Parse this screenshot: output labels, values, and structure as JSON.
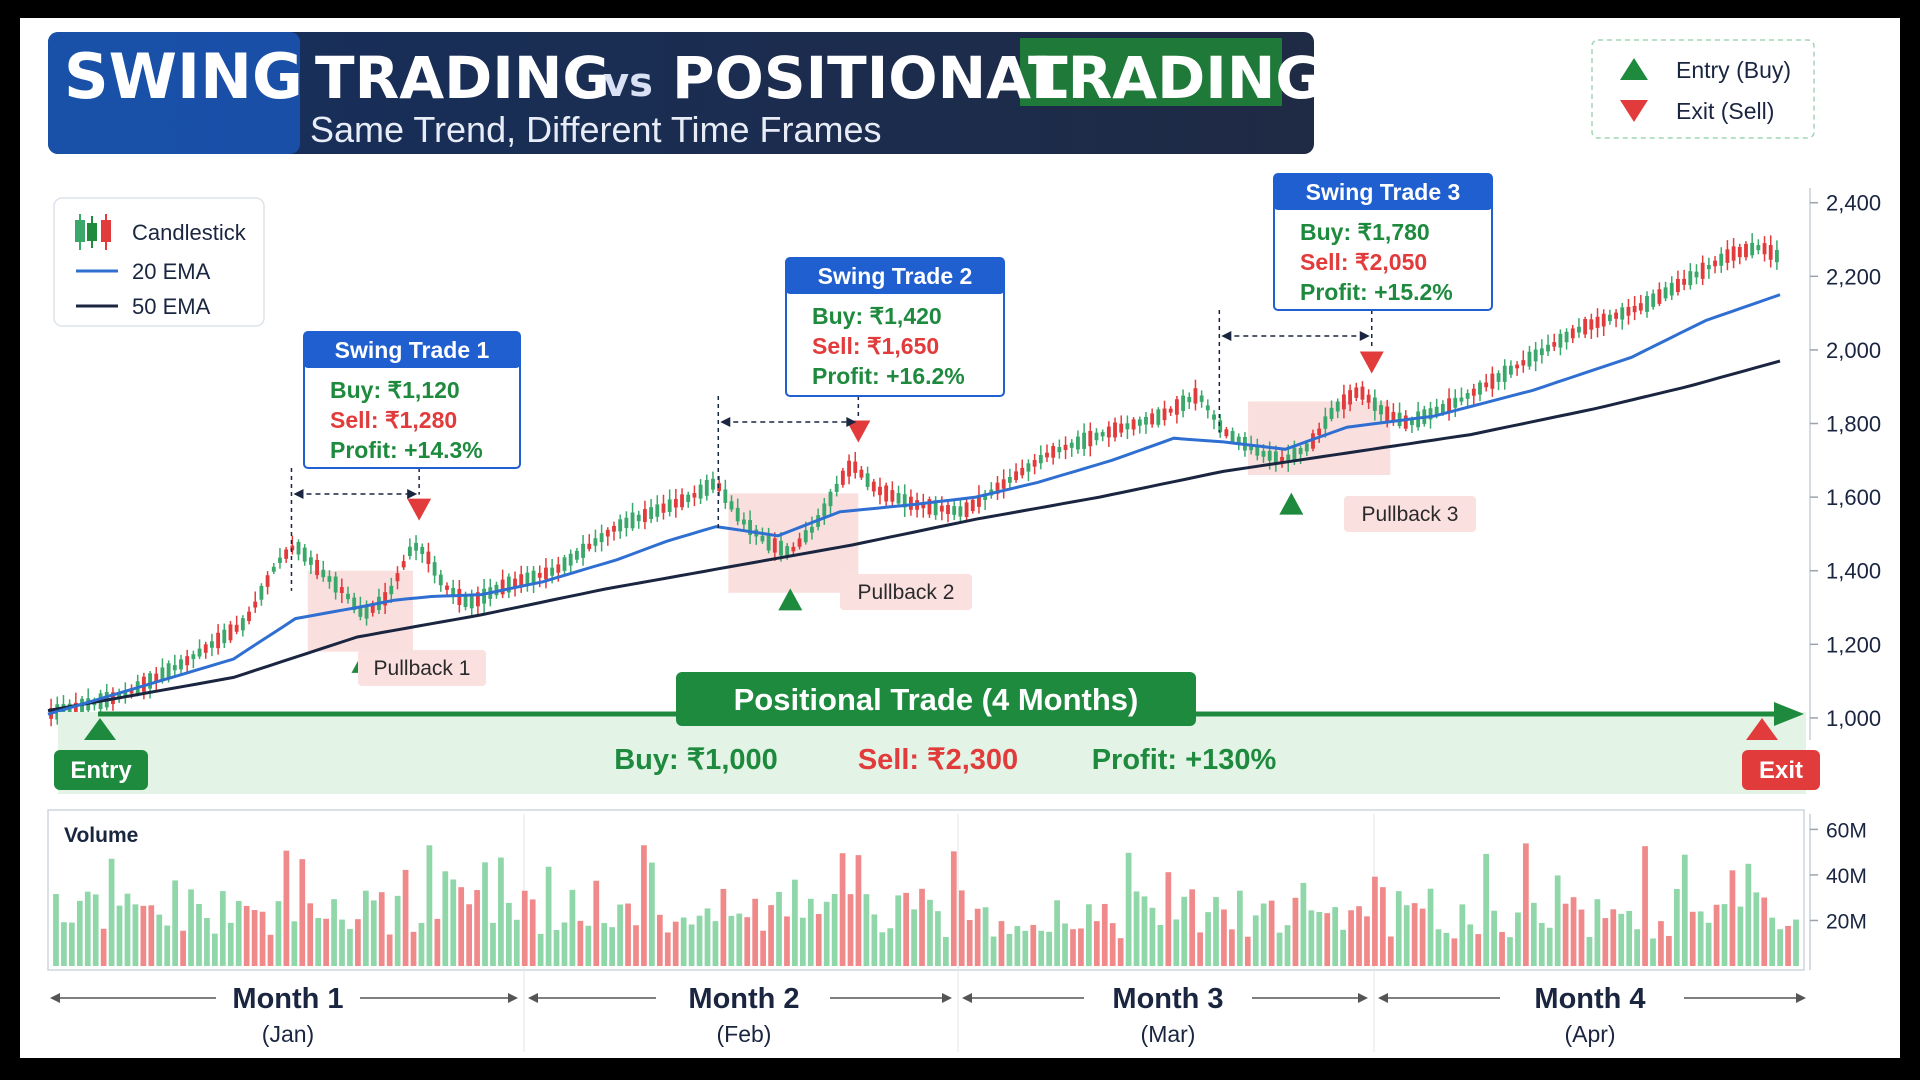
{
  "header": {
    "title_part1": "SWING",
    "title_part2": "TRADING",
    "title_vs": "vs",
    "title_part3": "POSITIONAL",
    "title_part4": "TRADING",
    "subtitle": "Same Trend, Different Time Frames"
  },
  "legend_signals": {
    "entry": "Entry (Buy)",
    "exit": "Exit (Sell)"
  },
  "legend_series": {
    "candles": "Candlestick",
    "ema20": "20 EMA",
    "ema50": "50 EMA"
  },
  "colors": {
    "up": "#3aa86b",
    "down": "#e23b3b",
    "ema20": "#2f6fd1",
    "ema50": "#1a2540",
    "green_band": "#1e8a3e",
    "header_bg": "#1a2a4a",
    "box_header": "#1f5fcf"
  },
  "swing_trades": [
    {
      "title": "Swing Trade 1",
      "buy": "Buy: ₹1,120",
      "sell": "Sell: ₹1,280",
      "profit": "Profit: +14.3%",
      "pullback": "Pullback 1"
    },
    {
      "title": "Swing Trade 2",
      "buy": "Buy: ₹1,420",
      "sell": "Sell: ₹1,650",
      "profit": "Profit: +16.2%",
      "pullback": "Pullback 2"
    },
    {
      "title": "Swing Trade 3",
      "buy": "Buy: ₹1,780",
      "sell": "Sell: ₹2,050",
      "profit": "Profit: +15.2%",
      "pullback": "Pullback 3"
    }
  ],
  "positional": {
    "title": "Positional Trade (4 Months)",
    "buy": "Buy: ₹1,000",
    "sell": "Sell: ₹2,300",
    "profit": "Profit: +130%",
    "entry_label": "Entry",
    "exit_label": "Exit"
  },
  "volume_label": "Volume",
  "months": [
    {
      "name": "Month 1",
      "sub": "(Jan)"
    },
    {
      "name": "Month 2",
      "sub": "(Feb)"
    },
    {
      "name": "Month 3",
      "sub": "(Mar)"
    },
    {
      "name": "Month 4",
      "sub": "(Apr)"
    }
  ],
  "chart_data": {
    "type": "line",
    "y_ticks": [
      "2,400",
      "2,200",
      "2,000",
      "1,800",
      "1,600",
      "1,400",
      "1,200",
      "1,000"
    ],
    "y_tick_values": [
      2400,
      2200,
      2000,
      1800,
      1600,
      1400,
      1200,
      1000
    ],
    "ylim": [
      940,
      2440
    ],
    "volume_ticks": [
      "60M",
      "40M",
      "20M"
    ],
    "volume_tick_values": [
      60,
      40,
      20
    ],
    "volume_ylim": [
      0,
      65
    ],
    "price_path": [
      [
        0,
        1010
      ],
      [
        12,
        1060
      ],
      [
        22,
        1150
      ],
      [
        32,
        1260
      ],
      [
        37,
        1420
      ],
      [
        40,
        1470
      ],
      [
        44,
        1400
      ],
      [
        48,
        1340
      ],
      [
        51,
        1280
      ],
      [
        55,
        1330
      ],
      [
        59,
        1470
      ],
      [
        61,
        1450
      ],
      [
        64,
        1360
      ],
      [
        68,
        1310
      ],
      [
        74,
        1360
      ],
      [
        82,
        1400
      ],
      [
        92,
        1520
      ],
      [
        104,
        1600
      ],
      [
        108,
        1640
      ],
      [
        112,
        1540
      ],
      [
        116,
        1480
      ],
      [
        120,
        1450
      ],
      [
        124,
        1520
      ],
      [
        128,
        1640
      ],
      [
        130,
        1690
      ],
      [
        134,
        1620
      ],
      [
        140,
        1580
      ],
      [
        148,
        1560
      ],
      [
        154,
        1630
      ],
      [
        162,
        1720
      ],
      [
        172,
        1780
      ],
      [
        180,
        1820
      ],
      [
        186,
        1880
      ],
      [
        190,
        1780
      ],
      [
        196,
        1720
      ],
      [
        200,
        1700
      ],
      [
        204,
        1740
      ],
      [
        208,
        1840
      ],
      [
        212,
        1890
      ],
      [
        216,
        1830
      ],
      [
        220,
        1800
      ],
      [
        228,
        1860
      ],
      [
        238,
        1960
      ],
      [
        248,
        2060
      ],
      [
        258,
        2120
      ],
      [
        266,
        2200
      ],
      [
        272,
        2260
      ],
      [
        277,
        2280
      ],
      [
        280,
        2250
      ]
    ],
    "ema20_path": [
      [
        0,
        1010
      ],
      [
        30,
        1160
      ],
      [
        40,
        1270
      ],
      [
        50,
        1300
      ],
      [
        56,
        1320
      ],
      [
        62,
        1330
      ],
      [
        70,
        1335
      ],
      [
        80,
        1370
      ],
      [
        92,
        1430
      ],
      [
        100,
        1480
      ],
      [
        108,
        1520
      ],
      [
        118,
        1495
      ],
      [
        128,
        1560
      ],
      [
        140,
        1580
      ],
      [
        150,
        1600
      ],
      [
        160,
        1640
      ],
      [
        172,
        1700
      ],
      [
        182,
        1760
      ],
      [
        190,
        1750
      ],
      [
        200,
        1730
      ],
      [
        210,
        1790
      ],
      [
        224,
        1820
      ],
      [
        240,
        1890
      ],
      [
        256,
        1980
      ],
      [
        268,
        2080
      ],
      [
        280,
        2150
      ]
    ],
    "ema50_path": [
      [
        0,
        1020
      ],
      [
        30,
        1110
      ],
      [
        50,
        1220
      ],
      [
        70,
        1280
      ],
      [
        90,
        1350
      ],
      [
        110,
        1410
      ],
      [
        130,
        1470
      ],
      [
        150,
        1540
      ],
      [
        170,
        1600
      ],
      [
        190,
        1670
      ],
      [
        210,
        1720
      ],
      [
        230,
        1770
      ],
      [
        250,
        1840
      ],
      [
        265,
        1900
      ],
      [
        280,
        1970
      ]
    ],
    "swing_entries": [
      {
        "x": 51,
        "y": 1120
      },
      {
        "x": 120,
        "y": 1420
      },
      {
        "x": 201,
        "y": 1780
      }
    ],
    "swing_exits": [
      {
        "x": 60,
        "y": 1280
      },
      {
        "x": 131,
        "y": 1650
      },
      {
        "x": 214,
        "y": 2050
      }
    ],
    "pullback_zones": [
      {
        "x0": 42,
        "x1": 59,
        "y0": 1180,
        "y1": 1400
      },
      {
        "x0": 110,
        "x1": 131,
        "y0": 1340,
        "y1": 1610
      },
      {
        "x0": 194,
        "x1": 217,
        "y0": 1660,
        "y1": 1860
      }
    ],
    "candle_count": 280,
    "volume_count": 220,
    "positional_entry": 1000,
    "positional_exit": 2300,
    "series": [
      {
        "name": "Candlestick"
      },
      {
        "name": "20 EMA"
      },
      {
        "name": "50 EMA"
      }
    ]
  }
}
